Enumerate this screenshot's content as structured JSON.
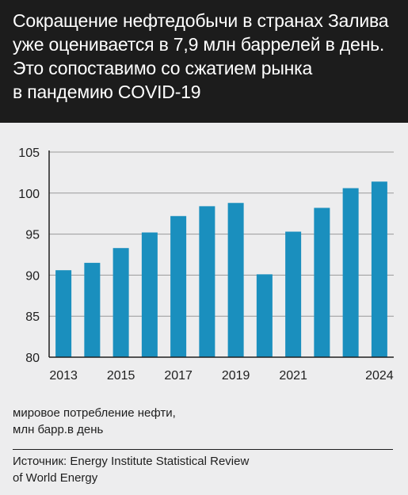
{
  "header": {
    "title_lines": [
      "Сокращение нефтедобычи в странах Залива",
      "уже оценивается в 7,9 млн баррелей в день.",
      "Это сопоставимо со сжатием рынка",
      "в пандемию COVID-19"
    ]
  },
  "ylabel_lines": [
    "мировое потребление нефти,",
    "млн барр.в день"
  ],
  "source_lines": [
    "Источник: Energy Institute Statistical Review",
    "of World Energy"
  ],
  "colors": {
    "bar": "#1a8fbe",
    "grid": "#9a9a9a",
    "header_bg": "#1c1c1c",
    "background": "#ededee"
  },
  "chart_data": {
    "type": "bar",
    "categories": [
      "2013",
      "2014",
      "2015",
      "2016",
      "2017",
      "2018",
      "2019",
      "2020",
      "2021",
      "2022",
      "2023",
      "2024"
    ],
    "values": [
      90.6,
      91.5,
      93.3,
      95.2,
      97.2,
      98.4,
      98.8,
      90.1,
      95.3,
      98.2,
      100.6,
      101.4
    ],
    "x_tick_labels": [
      "2013",
      "2015",
      "2017",
      "2019",
      "2021",
      "2024"
    ],
    "y_ticks": [
      80,
      85,
      90,
      95,
      100,
      105
    ],
    "ylim": [
      80,
      105
    ],
    "grid": true,
    "ylabel": "мировое потребление нефти, млн барр.в день"
  }
}
